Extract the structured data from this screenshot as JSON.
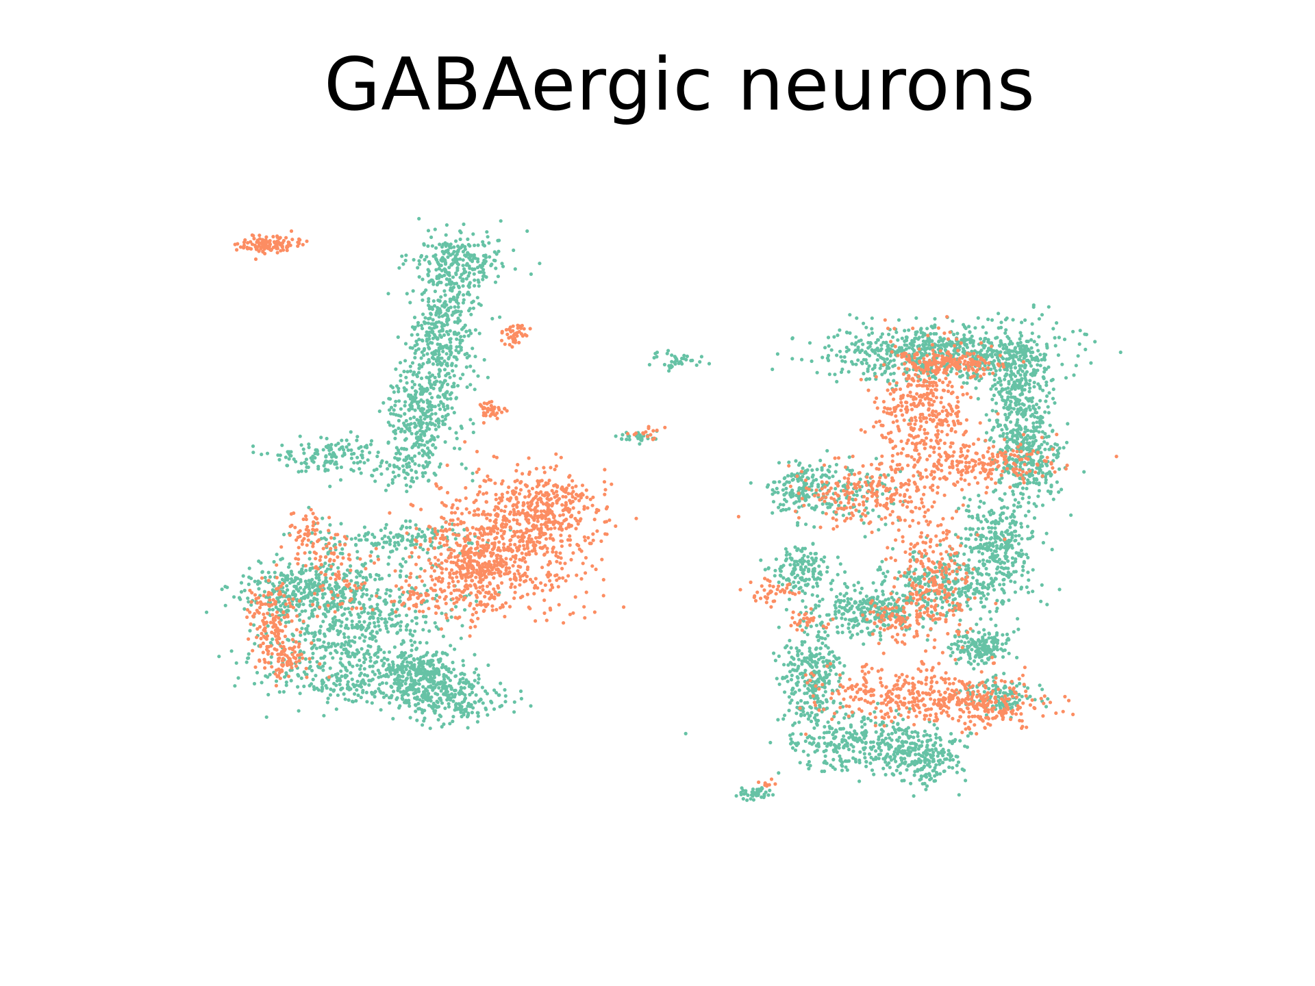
{
  "chart_data": {
    "type": "scatter",
    "title": "GABAergic neurons",
    "xlabel": "",
    "ylabel": "",
    "axes_visible": false,
    "grid": false,
    "legend": "none",
    "colors": {
      "group_a": "#66c2a5",
      "group_b": "#fc8d62"
    },
    "xlim": [
      0,
      100
    ],
    "ylim": [
      0,
      100
    ],
    "series": [
      {
        "color_key": "group_a",
        "clusters": [
          {
            "cx": 27,
            "cy": 84,
            "sx": 2.5,
            "sy": 2.2,
            "n": 220
          },
          {
            "cx": 25,
            "cy": 73,
            "sx": 1.8,
            "sy": 5.5,
            "n": 420
          },
          {
            "cx": 22.5,
            "cy": 62,
            "sx": 1.6,
            "sy": 3.5,
            "n": 260
          },
          {
            "cx": 13,
            "cy": 56.5,
            "sx": 3.0,
            "sy": 1.4,
            "n": 140
          },
          {
            "cx": 21,
            "cy": 54,
            "sx": 2.5,
            "sy": 1.0,
            "n": 70
          },
          {
            "cx": 21,
            "cy": 44.5,
            "sx": 4.5,
            "sy": 1.2,
            "n": 140
          },
          {
            "cx": 10,
            "cy": 37,
            "sx": 3.2,
            "sy": 1.8,
            "n": 260
          },
          {
            "cx": 16,
            "cy": 33,
            "sx": 5.0,
            "sy": 5.0,
            "n": 620
          },
          {
            "cx": 16,
            "cy": 24,
            "sx": 5.0,
            "sy": 1.8,
            "n": 220
          },
          {
            "cx": 23,
            "cy": 25,
            "sx": 1.8,
            "sy": 1.6,
            "n": 200
          },
          {
            "cx": 26,
            "cy": 21.5,
            "sx": 3.0,
            "sy": 1.8,
            "n": 220
          },
          {
            "cx": 49.5,
            "cy": 70,
            "sx": 1.3,
            "sy": 0.6,
            "n": 40
          },
          {
            "cx": 46,
            "cy": 59,
            "sx": 1.2,
            "sy": 0.5,
            "n": 30
          },
          {
            "cx": 78,
            "cy": 71,
            "sx": 6.0,
            "sy": 2.0,
            "n": 700
          },
          {
            "cx": 86,
            "cy": 66,
            "sx": 1.6,
            "sy": 4.0,
            "n": 300
          },
          {
            "cx": 87,
            "cy": 56,
            "sx": 1.8,
            "sy": 3.5,
            "n": 320
          },
          {
            "cx": 84,
            "cy": 44,
            "sx": 2.0,
            "sy": 3.0,
            "n": 260
          },
          {
            "cx": 79,
            "cy": 38,
            "sx": 3.5,
            "sy": 2.2,
            "n": 300
          },
          {
            "cx": 70,
            "cy": 34,
            "sx": 3.0,
            "sy": 1.6,
            "n": 260
          },
          {
            "cx": 64,
            "cy": 25,
            "sx": 1.6,
            "sy": 4.0,
            "n": 300
          },
          {
            "cx": 70,
            "cy": 15,
            "sx": 4.0,
            "sy": 2.0,
            "n": 320
          },
          {
            "cx": 76,
            "cy": 13,
            "sx": 2.0,
            "sy": 1.8,
            "n": 180
          },
          {
            "cx": 82,
            "cy": 29,
            "sx": 1.6,
            "sy": 1.2,
            "n": 160
          },
          {
            "cx": 84,
            "cy": 22,
            "sx": 1.8,
            "sy": 1.2,
            "n": 120
          },
          {
            "cx": 63,
            "cy": 52,
            "sx": 2.0,
            "sy": 2.0,
            "n": 140
          },
          {
            "cx": 63,
            "cy": 40,
            "sx": 1.6,
            "sy": 1.6,
            "n": 140
          },
          {
            "cx": 68,
            "cy": 51,
            "sx": 3.0,
            "sy": 2.5,
            "n": 120
          },
          {
            "cx": 58,
            "cy": 8,
            "sx": 1.0,
            "sy": 0.5,
            "n": 40
          }
        ]
      },
      {
        "color_key": "group_b",
        "clusters": [
          {
            "cx": 7,
            "cy": 86.5,
            "sx": 1.5,
            "sy": 0.6,
            "n": 120
          },
          {
            "cx": 32.5,
            "cy": 73.5,
            "sx": 0.8,
            "sy": 0.8,
            "n": 40
          },
          {
            "cx": 30,
            "cy": 63,
            "sx": 0.8,
            "sy": 0.6,
            "n": 40
          },
          {
            "cx": 32,
            "cy": 44,
            "sx": 4.5,
            "sy": 4.5,
            "n": 600
          },
          {
            "cx": 36,
            "cy": 49,
            "sx": 2.5,
            "sy": 2.5,
            "n": 260
          },
          {
            "cx": 28,
            "cy": 39,
            "sx": 2.5,
            "sy": 3.5,
            "n": 260
          },
          {
            "cx": 11,
            "cy": 45,
            "sx": 1.2,
            "sy": 2.0,
            "n": 60
          },
          {
            "cx": 7,
            "cy": 34,
            "sx": 1.2,
            "sy": 2.5,
            "n": 110
          },
          {
            "cx": 8,
            "cy": 28,
            "sx": 1.4,
            "sy": 1.8,
            "n": 110
          },
          {
            "cx": 14,
            "cy": 39,
            "sx": 1.6,
            "sy": 3.0,
            "n": 80
          },
          {
            "cx": 22,
            "cy": 36,
            "sx": 1.0,
            "sy": 1.0,
            "n": 40
          },
          {
            "cx": 47,
            "cy": 59.5,
            "sx": 0.8,
            "sy": 0.4,
            "n": 15
          },
          {
            "cx": 76,
            "cy": 62,
            "sx": 2.5,
            "sy": 5.0,
            "n": 420
          },
          {
            "cx": 79,
            "cy": 69.5,
            "sx": 3.0,
            "sy": 1.0,
            "n": 160
          },
          {
            "cx": 83,
            "cy": 55,
            "sx": 3.5,
            "sy": 1.5,
            "n": 180
          },
          {
            "cx": 70,
            "cy": 51,
            "sx": 4.0,
            "sy": 2.0,
            "n": 200
          },
          {
            "cx": 77,
            "cy": 38,
            "sx": 2.0,
            "sy": 5.0,
            "n": 260
          },
          {
            "cx": 73,
            "cy": 33,
            "sx": 1.5,
            "sy": 1.5,
            "n": 70
          },
          {
            "cx": 76,
            "cy": 22,
            "sx": 5.5,
            "sy": 2.0,
            "n": 380
          },
          {
            "cx": 83,
            "cy": 20,
            "sx": 2.5,
            "sy": 1.5,
            "n": 120
          },
          {
            "cx": 60,
            "cy": 37,
            "sx": 1.2,
            "sy": 0.8,
            "n": 40
          },
          {
            "cx": 63,
            "cy": 33,
            "sx": 1.2,
            "sy": 0.8,
            "n": 30
          },
          {
            "cx": 59,
            "cy": 9,
            "sx": 0.6,
            "sy": 0.4,
            "n": 8
          }
        ]
      }
    ]
  }
}
